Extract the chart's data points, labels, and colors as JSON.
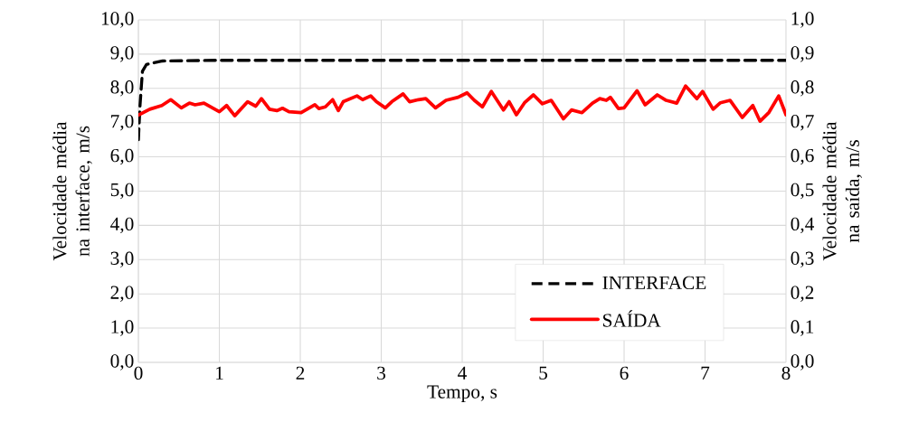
{
  "chart_data": {
    "type": "line",
    "xlabel": "Tempo, s",
    "ylabel": "Velocidade média na interface, m/s",
    "y2label": "Velocidade média na saída, m/s",
    "xlim": [
      0,
      8
    ],
    "xticks": [
      0,
      1,
      2,
      3,
      4,
      5,
      6,
      7,
      8
    ],
    "ylim": [
      0,
      10
    ],
    "yticks": [
      {
        "value": 0,
        "label": "0,0"
      },
      {
        "value": 1,
        "label": "1,0"
      },
      {
        "value": 2,
        "label": "2,0"
      },
      {
        "value": 3,
        "label": "3,0"
      },
      {
        "value": 4,
        "label": "4,0"
      },
      {
        "value": 5,
        "label": "5,0"
      },
      {
        "value": 6,
        "label": "6,0"
      },
      {
        "value": 7,
        "label": "7,0"
      },
      {
        "value": 8,
        "label": "8,0"
      },
      {
        "value": 9,
        "label": "9,0"
      },
      {
        "value": 10,
        "label": "10,0"
      }
    ],
    "y2lim": [
      0,
      1
    ],
    "y2ticks": [
      {
        "value": 0,
        "label": "0,0"
      },
      {
        "value": 0.1,
        "label": "0,1"
      },
      {
        "value": 0.2,
        "label": "0,2"
      },
      {
        "value": 0.3,
        "label": "0,3"
      },
      {
        "value": 0.4,
        "label": "0,4"
      },
      {
        "value": 0.5,
        "label": "0,5"
      },
      {
        "value": 0.6,
        "label": "0,6"
      },
      {
        "value": 0.7,
        "label": "0,7"
      },
      {
        "value": 0.8,
        "label": "0,8"
      },
      {
        "value": 0.9,
        "label": "0,9"
      },
      {
        "value": 1,
        "label": "1,0"
      }
    ],
    "grid": true,
    "legend": "bottom right",
    "series": [
      {
        "name": "INTERFACE",
        "color": "#000000",
        "line_style": "dashed",
        "x": [
          0,
          0.02,
          0.05,
          0.1,
          0.3,
          1,
          8
        ],
        "values": [
          6.5,
          7.5,
          8.5,
          8.7,
          8.8,
          8.82,
          8.82
        ]
      },
      {
        "name": "SAÍDA",
        "color": "#ff0000",
        "line_style": "solid",
        "axis": "y2",
        "x": [
          0,
          0.14,
          0.29,
          0.4,
          0.53,
          0.63,
          0.7,
          0.81,
          1.0,
          1.09,
          1.19,
          1.35,
          1.45,
          1.52,
          1.62,
          1.71,
          1.78,
          1.86,
          2.01,
          2.18,
          2.23,
          2.31,
          2.4,
          2.47,
          2.53,
          2.7,
          2.77,
          2.87,
          2.94,
          3.05,
          3.13,
          3.27,
          3.35,
          3.46,
          3.55,
          3.67,
          3.8,
          3.95,
          4.06,
          4.15,
          4.25,
          4.36,
          4.51,
          4.58,
          4.67,
          4.77,
          4.88,
          4.99,
          5.1,
          5.25,
          5.35,
          5.48,
          5.61,
          5.7,
          5.78,
          5.83,
          5.93,
          6.0,
          6.16,
          6.26,
          6.41,
          6.52,
          6.65,
          6.76,
          6.9,
          6.97,
          7.1,
          7.19,
          7.31,
          7.46,
          7.59,
          7.68,
          7.79,
          7.91,
          8.0
        ],
        "values": [
          0.722,
          0.739,
          0.75,
          0.767,
          0.743,
          0.757,
          0.752,
          0.757,
          0.732,
          0.75,
          0.72,
          0.761,
          0.748,
          0.77,
          0.739,
          0.735,
          0.742,
          0.732,
          0.729,
          0.752,
          0.741,
          0.746,
          0.767,
          0.735,
          0.761,
          0.778,
          0.767,
          0.778,
          0.761,
          0.743,
          0.761,
          0.784,
          0.761,
          0.767,
          0.77,
          0.743,
          0.765,
          0.774,
          0.787,
          0.765,
          0.746,
          0.791,
          0.737,
          0.761,
          0.723,
          0.758,
          0.781,
          0.755,
          0.765,
          0.711,
          0.737,
          0.729,
          0.757,
          0.77,
          0.765,
          0.774,
          0.741,
          0.743,
          0.793,
          0.752,
          0.781,
          0.765,
          0.757,
          0.807,
          0.77,
          0.791,
          0.739,
          0.758,
          0.765,
          0.715,
          0.75,
          0.704,
          0.73,
          0.778,
          0.723
        ]
      }
    ]
  }
}
